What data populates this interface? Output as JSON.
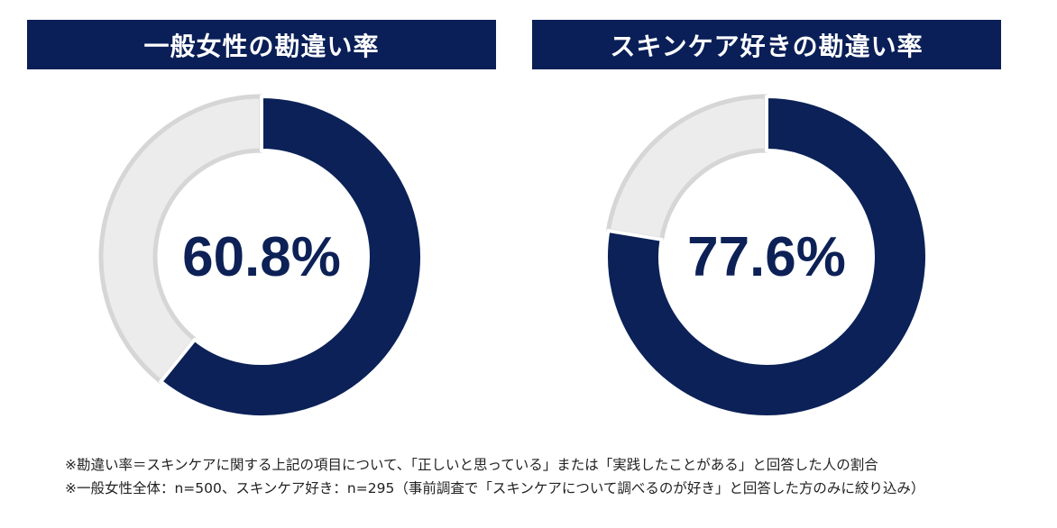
{
  "colors": {
    "navy": "#0b2157",
    "light": "#ececec",
    "ring_border": "#d6d6d6",
    "header_bg": "#0a1f57"
  },
  "chart_data": [
    {
      "type": "pie",
      "style": "donut",
      "title": "一般女性の勘違い率",
      "value_label": "60.8%",
      "values": [
        60.8,
        39.2
      ]
    },
    {
      "type": "pie",
      "style": "donut",
      "title": "スキンケア好きの勘違い率",
      "value_label": "77.6%",
      "values": [
        77.6,
        22.4
      ]
    }
  ],
  "notes": [
    "※勘違い率＝スキンケアに関する上記の項目について、「正しいと思っている」または「実践したことがある」と回答した人の割合",
    "※一般女性全体：n=500、スキンケア好き：n=295（事前調査で「スキンケアについて調べるのが好き」と回答した方のみに絞り込み）"
  ]
}
